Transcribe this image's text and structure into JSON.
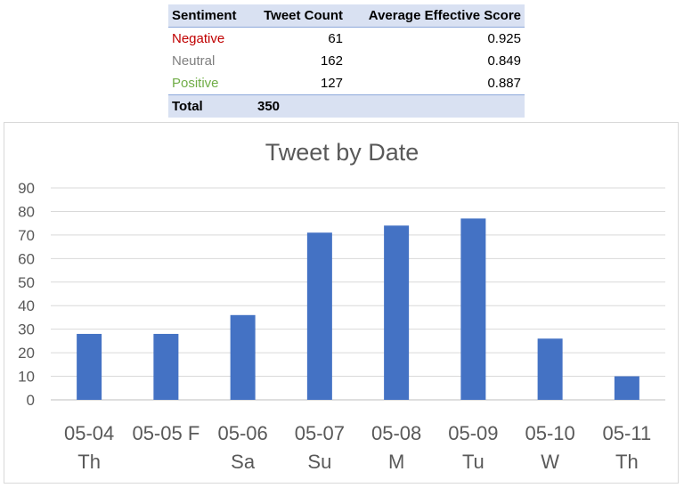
{
  "table": {
    "headers": [
      "Sentiment",
      "Tweet Count",
      "Average Effective Score"
    ],
    "rows": [
      {
        "sentiment": "Negative",
        "count": "61",
        "score": "0.925",
        "color": "#c00000"
      },
      {
        "sentiment": "Neutral",
        "count": "162",
        "score": "0.849",
        "color": "#7f7f7f"
      },
      {
        "sentiment": "Positive",
        "count": "127",
        "score": "0.887",
        "color": "#70ad47"
      }
    ],
    "total": {
      "label": "Total",
      "count": "350",
      "score": ""
    }
  },
  "chart_data": {
    "type": "bar",
    "title": "Tweet by Date",
    "xlabel": "",
    "ylabel": "",
    "categories": [
      [
        "05-04",
        "Th"
      ],
      [
        "05-05 F",
        ""
      ],
      [
        "05-06",
        "Sa"
      ],
      [
        "05-07",
        "Su"
      ],
      [
        "05-08",
        "M"
      ],
      [
        "05-09",
        "Tu"
      ],
      [
        "05-10",
        "W"
      ],
      [
        "05-11",
        "Th"
      ]
    ],
    "values": [
      28,
      28,
      36,
      71,
      74,
      77,
      26,
      10
    ],
    "ylim": [
      0,
      90
    ],
    "yticks": [
      0,
      10,
      20,
      30,
      40,
      50,
      60,
      70,
      80,
      90
    ],
    "grid": true,
    "legend": "none",
    "bar_color": "#4472c4"
  }
}
